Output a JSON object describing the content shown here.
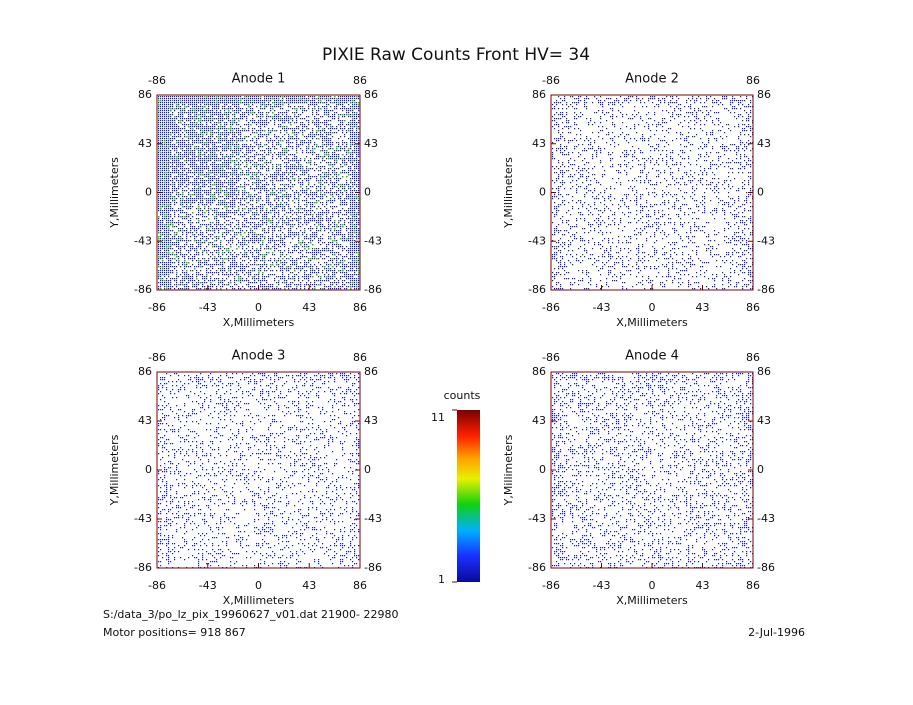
{
  "title": "PIXIE Raw Counts Front HV= 34",
  "chart_data": [
    {
      "type": "heatmap",
      "title": "Anode 1",
      "xlabel": "X,Millimeters",
      "ylabel": "Y,Millimeters",
      "xlim": [
        -86,
        86
      ],
      "ylim": [
        -86,
        86
      ],
      "xticks": [
        -86,
        -43,
        0,
        43,
        86
      ],
      "yticks": [
        -86,
        -43,
        0,
        43,
        86
      ],
      "x2ticks": [
        -86,
        86
      ]
    },
    {
      "type": "heatmap",
      "title": "Anode 2",
      "xlabel": "X,Millimeters",
      "ylabel": "Y,Millimeters",
      "xlim": [
        -86,
        86
      ],
      "ylim": [
        -86,
        86
      ],
      "xticks": [
        -86,
        -43,
        0,
        43,
        86
      ],
      "yticks": [
        -86,
        -43,
        0,
        43,
        86
      ],
      "x2ticks": [
        -86,
        86
      ]
    },
    {
      "type": "heatmap",
      "title": "Anode 3",
      "xlabel": "X,Millimeters",
      "ylabel": "Y,Millimeters",
      "xlim": [
        -86,
        86
      ],
      "ylim": [
        -86,
        86
      ],
      "xticks": [
        -86,
        -43,
        0,
        43,
        86
      ],
      "yticks": [
        -86,
        -43,
        0,
        43,
        86
      ],
      "x2ticks": [
        -86,
        86
      ]
    },
    {
      "type": "heatmap",
      "title": "Anode 4",
      "xlabel": "X,Millimeters",
      "ylabel": "Y,Millimeters",
      "xlim": [
        -86,
        86
      ],
      "ylim": [
        -86,
        86
      ],
      "xticks": [
        -86,
        -43,
        0,
        43,
        86
      ],
      "yticks": [
        -86,
        -43,
        0,
        43,
        86
      ],
      "x2ticks": [
        -86,
        86
      ]
    }
  ],
  "colorbar": {
    "label": "counts",
    "lim": [
      1,
      11
    ],
    "ticks": [
      11,
      1
    ]
  },
  "footer": {
    "file": "S:/data_3/po_lz_pix_19960627_v01.dat   21900- 22980",
    "motor": "Motor positions= 918 867",
    "date": "2-Jul-1996"
  }
}
